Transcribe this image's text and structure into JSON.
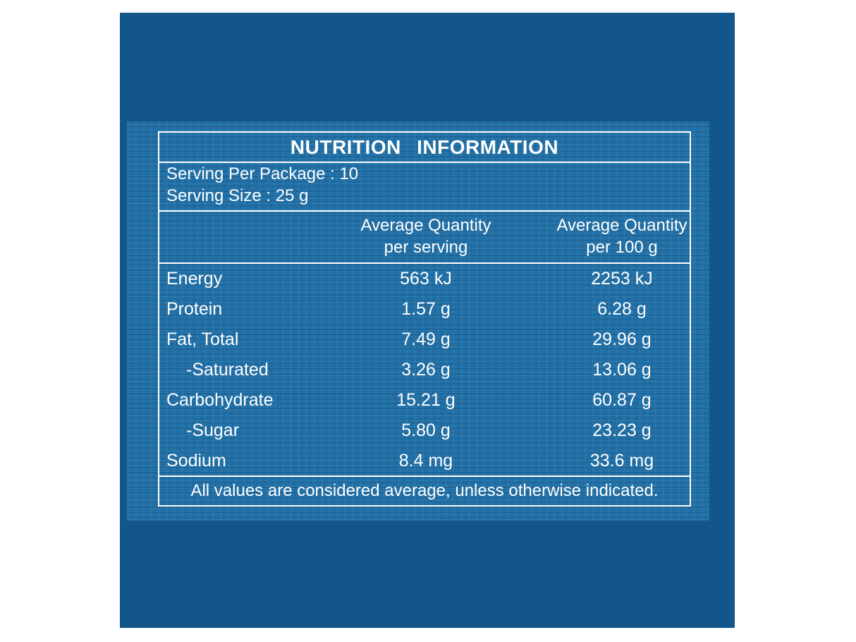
{
  "label": {
    "title": "NUTRITION   INFORMATION",
    "servings_per_package": "Serving Per Package : 10",
    "serving_size": "Serving Size : 25 g",
    "columns": [
      {
        "line1": "Average Quantity",
        "line2": "per serving"
      },
      {
        "line1": "Average Quantity",
        "line2": "per 100 g"
      }
    ],
    "rows": [
      {
        "nutrient": "Energy",
        "per_serving": "563 kJ",
        "per_100g": "2253 kJ"
      },
      {
        "nutrient": "Protein",
        "per_serving": "1.57 g",
        "per_100g": "6.28 g"
      },
      {
        "nutrient": "Fat, Total",
        "per_serving": "7.49 g",
        "per_100g": "29.96 g"
      },
      {
        "nutrient": "-Saturated",
        "per_serving": "3.26 g",
        "per_100g": "13.06 g"
      },
      {
        "nutrient": "Carbohydrate",
        "per_serving": "15.21 g",
        "per_100g": "60.87 g"
      },
      {
        "nutrient": "-Sugar",
        "per_serving": "5.80 g",
        "per_100g": "23.23 g"
      },
      {
        "nutrient": "Sodium",
        "per_serving": "8.4 mg",
        "per_100g": "33.6 mg"
      }
    ],
    "footnote": "All values are considered average, unless otherwise indicated."
  },
  "colors": {
    "panel": "#13568a",
    "band": "#1f6fa6",
    "text": "#ffffff"
  }
}
